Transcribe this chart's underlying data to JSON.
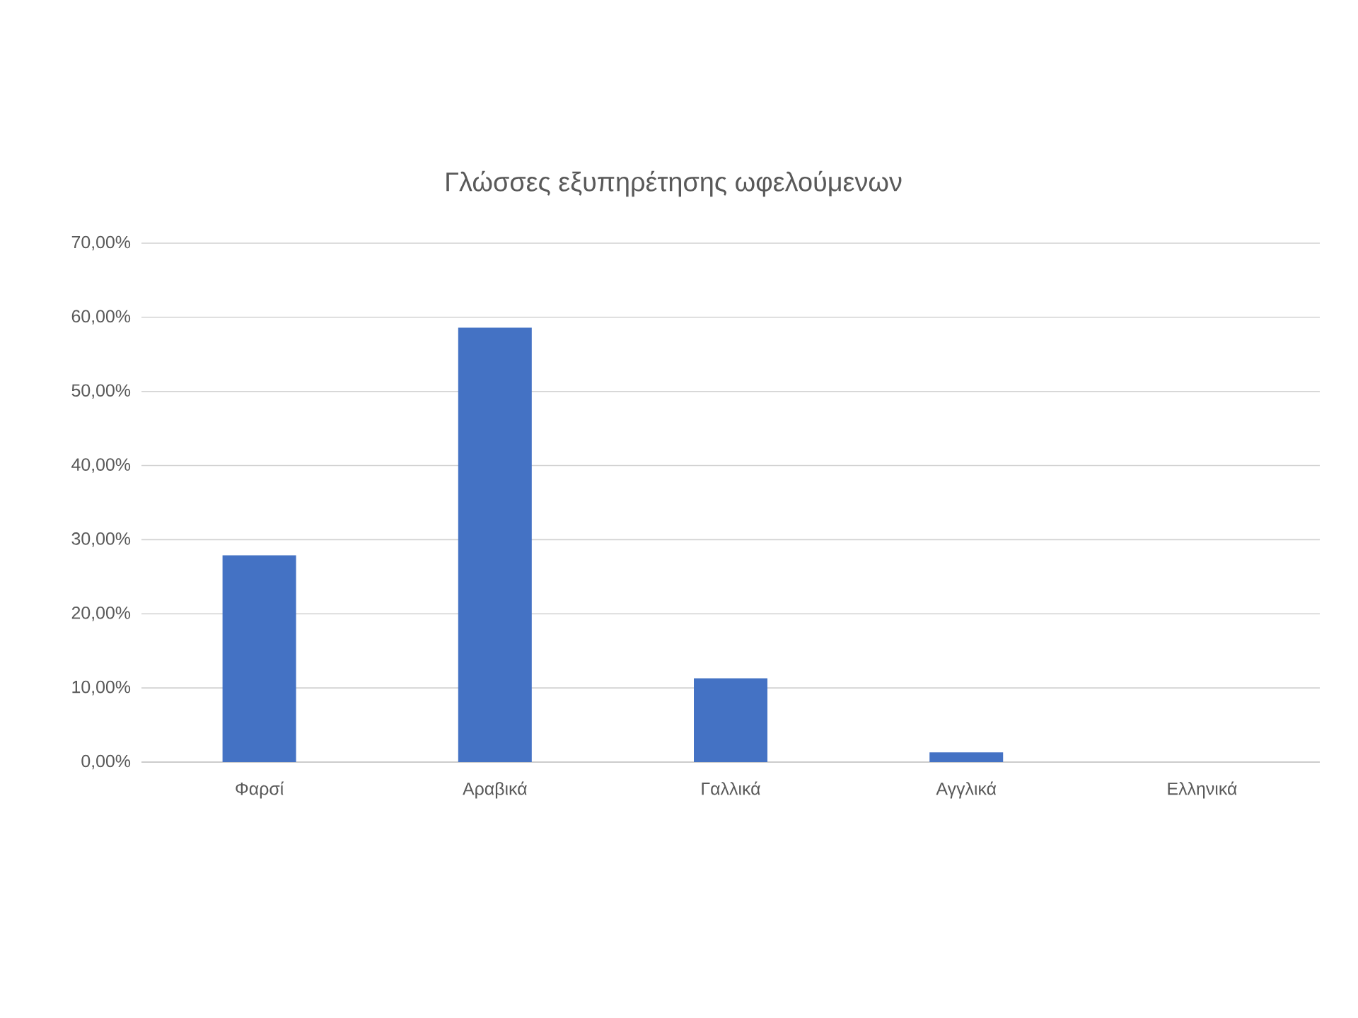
{
  "chart_data": {
    "type": "bar",
    "title": "Γλώσσες εξυπηρέτησης ωφελούμενων",
    "categories": [
      "Φαρσί",
      "Αραβικά",
      "Γαλλικά",
      "Αγγλικά",
      "Ελληνικά"
    ],
    "values": [
      27.9,
      58.6,
      11.3,
      1.3,
      0
    ],
    "color": "#4472c4",
    "ylim": [
      0,
      70
    ],
    "yticks": [
      {
        "value": 0,
        "label": "0,00%"
      },
      {
        "value": 10,
        "label": "10,00%"
      },
      {
        "value": 20,
        "label": "20,00%"
      },
      {
        "value": 30,
        "label": "30,00%"
      },
      {
        "value": 40,
        "label": "40,00%"
      },
      {
        "value": 50,
        "label": "50,00%"
      },
      {
        "value": 60,
        "label": "60,00%"
      },
      {
        "value": 70,
        "label": "70,00%"
      }
    ],
    "grid": "y"
  }
}
